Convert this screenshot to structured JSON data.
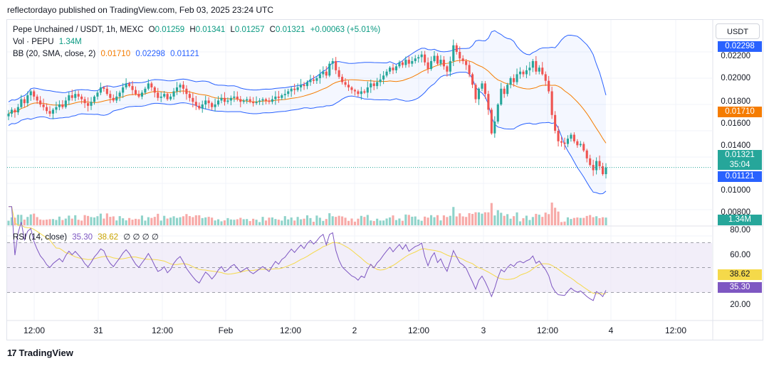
{
  "header": {
    "published": "reflectordayo published on TradingView.com, Feb 03, 2025 23:24 UTC"
  },
  "legend": {
    "symbol": "Pepe Unchained / USDT, 1h, MEXC",
    "o_label": "O",
    "o": "0.01259",
    "h_label": "H",
    "h": "0.01341",
    "l_label": "L",
    "l": "0.01257",
    "c_label": "C",
    "c": "0.01321",
    "change": "+0.00063 (+5.01%)",
    "vol_label": "Vol · PEPU",
    "vol": "1.34M",
    "bb_label": "BB (20, SMA, close, 2)",
    "bb_basis": "0.01710",
    "bb_upper": "0.02298",
    "bb_lower": "0.01121",
    "rsi_label": "RSI (14, close)",
    "rsi": "35.30",
    "rsi_ma": "38.62",
    "rsi_extra": "∅ ∅ ∅ ∅"
  },
  "price_axis": {
    "unit": "USDT",
    "ticks": [
      "0.02200",
      "0.02000",
      "0.01800",
      "0.01600",
      "0.01400",
      "0.01000",
      "0.00800"
    ],
    "badge_upper": "0.02298",
    "badge_basis": "0.01710",
    "badge_close": "0.01321",
    "badge_countdown": "35:04",
    "badge_lower": "0.01121",
    "badge_volume": "1.34M"
  },
  "rsi_axis": {
    "ticks": [
      "80.00",
      "60.00",
      "20.00"
    ],
    "badge_ma": "38.62",
    "badge_rsi": "35.30"
  },
  "time_axis": {
    "labels": [
      "12:00",
      "31",
      "12:00",
      "Feb",
      "12:00",
      "2",
      "12:00",
      "3",
      "12:00",
      "4",
      "12:00"
    ]
  },
  "footer": {
    "brand": "TradingView"
  },
  "colors": {
    "up": "#26a69a",
    "down": "#ef5350",
    "bb_band": "#2962ff",
    "bb_basis": "#f57c00",
    "rsi": "#7e57c2",
    "rsi_ma": "#f5d94a",
    "rsi_zone": "#ede7f6",
    "vol_up": "#8fd3ca",
    "vol_down": "#f7a9a7"
  },
  "chart_data": {
    "type": "candlestick",
    "timeframe": "1h",
    "time_range": [
      "2025-01-30 08:00",
      "2025-02-03 23:00"
    ],
    "ylim": [
      0.0078,
      0.024
    ],
    "last": {
      "open": 0.01259,
      "high": 0.01341,
      "low": 0.01257,
      "close": 0.01321,
      "volume": "1.34M"
    },
    "close_series": [
      0.0173,
      0.0176,
      0.0174,
      0.0178,
      0.0184,
      0.0181,
      0.0187,
      0.019,
      0.0186,
      0.0183,
      0.018,
      0.0178,
      0.0175,
      0.0173,
      0.0176,
      0.0178,
      0.018,
      0.0178,
      0.0183,
      0.0187,
      0.0185,
      0.0188,
      0.0186,
      0.0184,
      0.0181,
      0.0179,
      0.0182,
      0.0186,
      0.0189,
      0.0193,
      0.0192,
      0.0188,
      0.0185,
      0.0183,
      0.0186,
      0.0189,
      0.0193,
      0.0196,
      0.0194,
      0.0191,
      0.0188,
      0.0186,
      0.0189,
      0.0192,
      0.0196,
      0.0193,
      0.0189,
      0.0185,
      0.0186,
      0.0188,
      0.0184,
      0.0186,
      0.019,
      0.0193,
      0.0195,
      0.0192,
      0.0188,
      0.0185,
      0.0182,
      0.0179,
      0.0177,
      0.018,
      0.0183,
      0.0181,
      0.0178,
      0.018,
      0.0183,
      0.0185,
      0.0182,
      0.0183,
      0.0185,
      0.0186,
      0.0184,
      0.0182,
      0.0183,
      0.0184,
      0.0182,
      0.0181,
      0.0182,
      0.0183,
      0.0184,
      0.0183,
      0.0182,
      0.0184,
      0.0186,
      0.0185,
      0.0187,
      0.0188,
      0.019,
      0.0192,
      0.0191,
      0.0193,
      0.0195,
      0.0194,
      0.0197,
      0.0199,
      0.0198,
      0.02,
      0.0203,
      0.0205,
      0.0202,
      0.0211,
      0.0213,
      0.0206,
      0.0201,
      0.0197,
      0.0195,
      0.0193,
      0.0191,
      0.019,
      0.0188,
      0.019,
      0.0189,
      0.0193,
      0.0196,
      0.0194,
      0.0197,
      0.0199,
      0.0202,
      0.0205,
      0.0208,
      0.0206,
      0.0209,
      0.0212,
      0.021,
      0.0214,
      0.0211,
      0.0213,
      0.0215,
      0.0216,
      0.0218,
      0.0212,
      0.0207,
      0.0213,
      0.0217,
      0.0211,
      0.0214,
      0.0209,
      0.0205,
      0.0213,
      0.0225,
      0.022,
      0.0215,
      0.0213,
      0.021,
      0.0203,
      0.0195,
      0.0184,
      0.0192,
      0.0196,
      0.0188,
      0.0176,
      0.0158,
      0.0167,
      0.018,
      0.0192,
      0.0188,
      0.0195,
      0.02,
      0.0197,
      0.0203,
      0.0205,
      0.0203,
      0.0206,
      0.0208,
      0.0213,
      0.0205,
      0.0208,
      0.0203,
      0.0198,
      0.019,
      0.0172,
      0.016,
      0.0152,
      0.0151,
      0.015,
      0.0154,
      0.0157,
      0.0152,
      0.0149,
      0.015,
      0.0145,
      0.0139,
      0.0134,
      0.013,
      0.0137,
      0.0133,
      0.0127,
      0.01321
    ]
  }
}
